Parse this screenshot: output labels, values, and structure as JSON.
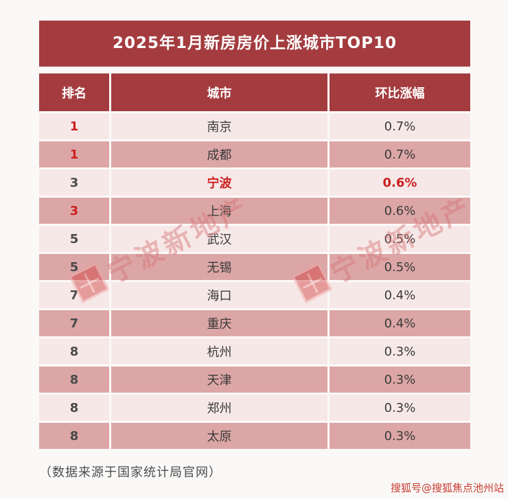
{
  "table": {
    "title": "2025年1月新房房价上涨城市TOP10",
    "columns": [
      "排名",
      "城市",
      "环比涨幅"
    ],
    "rows": [
      {
        "rank": "1",
        "city": "南京",
        "change": "0.7%",
        "rank_red": true,
        "highlight": false
      },
      {
        "rank": "1",
        "city": "成都",
        "change": "0.7%",
        "rank_red": true,
        "highlight": false
      },
      {
        "rank": "3",
        "city": "宁波",
        "change": "0.6%",
        "rank_red": false,
        "highlight": true
      },
      {
        "rank": "3",
        "city": "上海",
        "change": "0.6%",
        "rank_red": true,
        "highlight": false
      },
      {
        "rank": "5",
        "city": "武汉",
        "change": "0.5%",
        "rank_red": false,
        "highlight": false
      },
      {
        "rank": "5",
        "city": "无锡",
        "change": "0.5%",
        "rank_red": false,
        "highlight": false
      },
      {
        "rank": "7",
        "city": "海口",
        "change": "0.4%",
        "rank_red": false,
        "highlight": false
      },
      {
        "rank": "7",
        "city": "重庆",
        "change": "0.4%",
        "rank_red": false,
        "highlight": false
      },
      {
        "rank": "8",
        "city": "杭州",
        "change": "0.3%",
        "rank_red": false,
        "highlight": false
      },
      {
        "rank": "8",
        "city": "天津",
        "change": "0.3%",
        "rank_red": false,
        "highlight": false
      },
      {
        "rank": "8",
        "city": "郑州",
        "change": "0.3%",
        "rank_red": false,
        "highlight": false
      },
      {
        "rank": "8",
        "city": "太原",
        "change": "0.3%",
        "rank_red": false,
        "highlight": false
      }
    ],
    "source_note": "（数据来源于国家统计局官网）"
  },
  "watermarks": {
    "diagonal": "宁波新地产",
    "corner": "搜狐号@搜狐焦点池州站"
  },
  "colors": {
    "header_red": "#a43c3f",
    "row_light": "#f7e8e8",
    "row_dark": "#dca6a6",
    "accent_red": "#cc2020",
    "corner_red": "#c53a2d"
  },
  "chart_data": {
    "type": "table",
    "title": "2025年1月新房房价上涨城市TOP10",
    "columns": [
      "排名",
      "城市",
      "环比涨幅"
    ],
    "rows": [
      [
        "1",
        "南京",
        "0.7%"
      ],
      [
        "1",
        "成都",
        "0.7%"
      ],
      [
        "3",
        "宁波",
        "0.6%"
      ],
      [
        "3",
        "上海",
        "0.6%"
      ],
      [
        "5",
        "武汉",
        "0.5%"
      ],
      [
        "5",
        "无锡",
        "0.5%"
      ],
      [
        "7",
        "海口",
        "0.4%"
      ],
      [
        "7",
        "重庆",
        "0.4%"
      ],
      [
        "8",
        "杭州",
        "0.3%"
      ],
      [
        "8",
        "天津",
        "0.3%"
      ],
      [
        "8",
        "郑州",
        "0.3%"
      ],
      [
        "8",
        "太原",
        "0.3%"
      ]
    ],
    "source_note": "（数据来源于国家统计局官网）",
    "values_unit": "percent month-over-month"
  }
}
